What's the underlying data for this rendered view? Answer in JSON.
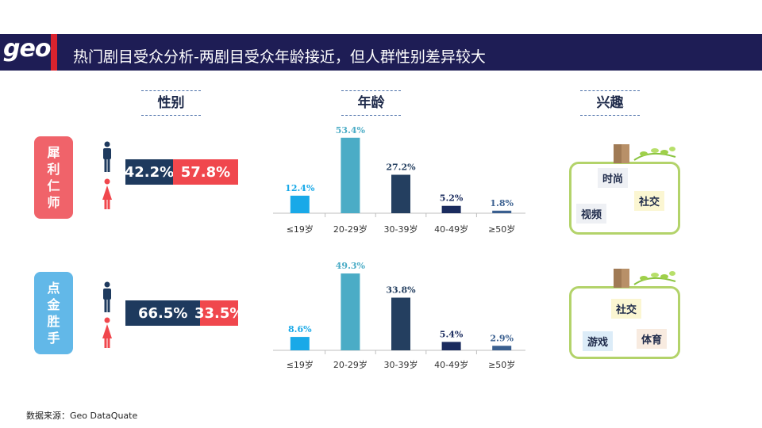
{
  "header": {
    "logo": "geo",
    "title": "热门剧目受众分析-两剧目受众年龄接近，但人群性别差异较大"
  },
  "sections": {
    "gender": "性别",
    "age": "年龄",
    "interest": "兴趣"
  },
  "dramas": [
    {
      "name": [
        "犀",
        "利",
        "仁",
        "师"
      ],
      "male_pct": "42.2%",
      "female_pct": "57.8%",
      "male_value": 42.2,
      "female_value": 57.8,
      "interests": [
        "时尚",
        "社交",
        "视频"
      ]
    },
    {
      "name": [
        "点",
        "金",
        "胜",
        "手"
      ],
      "male_pct": "66.5%",
      "female_pct": "33.5%",
      "male_value": 66.5,
      "female_value": 33.5,
      "interests": [
        "社交",
        "游戏",
        "体育"
      ]
    }
  ],
  "chart_data": [
    {
      "type": "bar",
      "categories": [
        "≤19岁",
        "20-29岁",
        "30-39岁",
        "40-49岁",
        "≥50岁"
      ],
      "values": [
        12.4,
        53.4,
        27.2,
        5.2,
        1.8
      ],
      "value_labels": [
        "12.4%",
        "53.4%",
        "27.2%",
        "5.2%",
        "1.8%"
      ],
      "colors": [
        "#19a9e8",
        "#4bacc6",
        "#243f60",
        "#1a2b5e",
        "#3a5f8f"
      ],
      "ylim": [
        0,
        60
      ],
      "grid": false
    },
    {
      "type": "bar",
      "categories": [
        "≤19岁",
        "20-29岁",
        "30-39岁",
        "40-49岁",
        "≥50岁"
      ],
      "values": [
        8.6,
        49.3,
        33.8,
        5.4,
        2.9
      ],
      "value_labels": [
        "8.6%",
        "49.3%",
        "33.8%",
        "5.4%",
        "2.9%"
      ],
      "colors": [
        "#19a9e8",
        "#4bacc6",
        "#243f60",
        "#1a2b5e",
        "#3a5f8f"
      ],
      "ylim": [
        0,
        60
      ],
      "grid": false
    }
  ],
  "colors": {
    "header_bg": "#1e1d55",
    "accent_red": "#d9232e",
    "male": "#1e3a5e",
    "female": "#f0474d",
    "leaf_green": "#b3d36a"
  },
  "source": "数据来源：Geo DataQuate"
}
